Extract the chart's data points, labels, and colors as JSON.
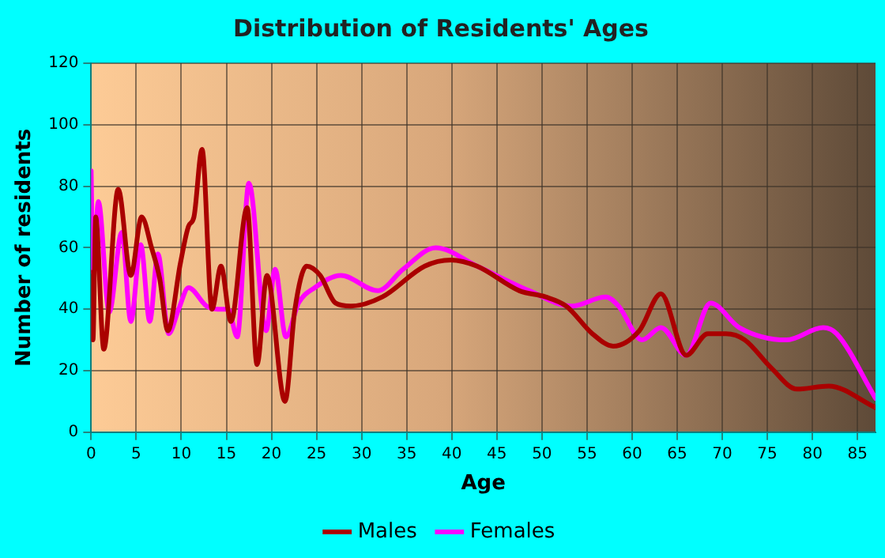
{
  "chart_data": {
    "type": "line",
    "title": "Distribution of Residents' Ages",
    "xlabel": "Age",
    "ylabel": "Number of residents",
    "xlim": [
      0,
      87
    ],
    "xticks": [
      0,
      5,
      10,
      15,
      20,
      25,
      30,
      35,
      40,
      45,
      50,
      55,
      60,
      65,
      70,
      75,
      80,
      85
    ],
    "ylim": [
      0,
      120
    ],
    "yticks": [
      0,
      20,
      40,
      60,
      80,
      100,
      120
    ],
    "grid": true,
    "legend": "bottom",
    "marker": "none",
    "line_style": "solid",
    "series": [
      {
        "name": "Males",
        "color": "#aa0000",
        "x": [
          0,
          0.2,
          0.5,
          1.4,
          3,
          4.4,
          5.6,
          6.7,
          7.6,
          8.5,
          9.9,
          10.8,
          11.4,
          12.3,
          13.4,
          14.4,
          15.5,
          17.3,
          18.4,
          19.5,
          21.5,
          22.6,
          23.9,
          25.4,
          27.1,
          28.8,
          32.3,
          37,
          39.9,
          42.8,
          47.5,
          50.4,
          52.7,
          55.6,
          57.9,
          60.8,
          63.2,
          66,
          68.4,
          70.4,
          72.5,
          75.4,
          78.3,
          81.8,
          87
        ],
        "values": [
          52,
          30,
          70,
          27,
          79,
          51,
          70,
          60,
          50,
          33,
          55,
          67,
          70,
          92,
          40,
          54,
          36,
          73,
          22,
          51,
          10,
          40,
          54,
          51,
          42,
          41,
          44,
          54,
          56,
          54,
          46,
          44,
          41,
          32,
          28,
          33,
          45,
          25,
          32,
          32,
          30,
          21,
          14,
          15,
          8
        ]
      },
      {
        "name": "Females",
        "color": "#ff00ff",
        "x": [
          0,
          0.2,
          0.8,
          2,
          3.4,
          4.4,
          5.5,
          6.5,
          7.4,
          8.6,
          9.7,
          10.8,
          12.8,
          14,
          15.2,
          16.2,
          17.5,
          19.4,
          20.4,
          21.6,
          23,
          24.8,
          27.7,
          31.8,
          34.6,
          38.2,
          42.8,
          48.6,
          53.3,
          57.1,
          58.5,
          61.1,
          63.2,
          66,
          68.7,
          71.9,
          77.1,
          81.2,
          82.7,
          87
        ],
        "values": [
          85,
          52,
          75,
          39,
          65,
          36,
          61,
          36,
          58,
          32,
          40,
          47,
          41,
          40,
          40,
          31,
          81,
          33,
          53,
          31,
          42,
          47,
          51,
          46,
          53,
          60,
          54,
          46,
          41,
          44,
          41,
          30,
          34,
          25,
          42,
          34,
          30,
          34,
          32,
          11
        ]
      }
    ]
  }
}
